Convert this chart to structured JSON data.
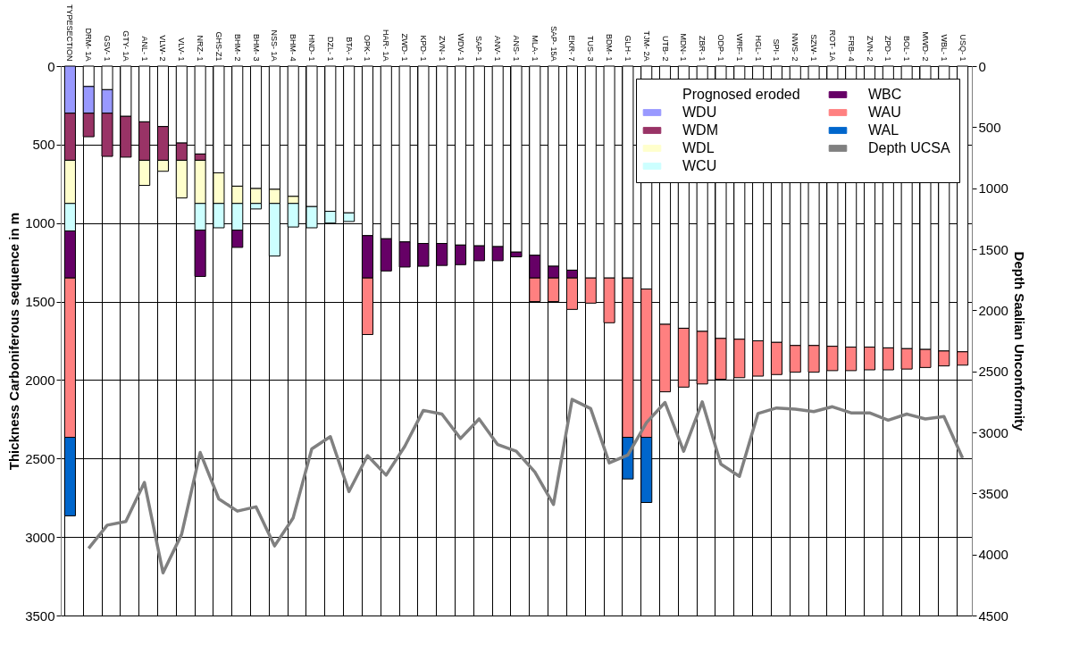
{
  "chart_data": {
    "type": "bar",
    "stacked": true,
    "categories": [
      "TYPESECTION",
      "DRM- 1A",
      "GSV- 1",
      "GTY- 1A",
      "ANL- 1",
      "VLW- 2",
      "VLV- 1",
      "NRZ- 1",
      "GHS-Z1",
      "BHM- 2",
      "BHM- 3",
      "NSS- 1A",
      "BHM- 4",
      "HND- 1",
      "DZL- 1",
      "BTA- 1",
      "OPK- 1",
      "HAR- 1A",
      "ZWD- 1",
      "KPD- 1",
      "ZVN- 1",
      "WDV- 1",
      "SAP- 1",
      "ANV- 1",
      "ANS- 1",
      "MLA- 1",
      "SAP- 15A",
      "EKR- 7",
      "TUS- 3",
      "BDM- 1",
      "GLH- 1",
      "TJM- 2A",
      "UTB- 2",
      "MDN- 1",
      "ZBR- 1",
      "ODP- 1",
      "WRF- 1",
      "HGL- 1",
      "SPI- 1",
      "NWS- 2",
      "SZW- 1",
      "ROT- 1A",
      "FRB- 4",
      "ZVN- 2",
      "ZPD- 1",
      "BOL- 1",
      "MWD- 2",
      "WBL- 1",
      "USQ- 1"
    ],
    "ylabel": "Thickness Carboniferous sequence in m",
    "y2label": "Depth Saalian Unconformity",
    "ylim": [
      3500,
      0
    ],
    "yticks": [
      0,
      500,
      1000,
      1500,
      2000,
      2500,
      3000,
      3500
    ],
    "y2lim": [
      4500,
      0
    ],
    "y2ticks": [
      0,
      500,
      1000,
      1500,
      2000,
      2500,
      3000,
      3500,
      4000,
      4500
    ],
    "grid": true,
    "legend": "top right",
    "series": [
      {
        "name": "Prognosed eroded",
        "color": "#ffffff",
        "values": [
          null,
          130,
          150,
          320,
          355,
          385,
          490,
          560,
          680,
          765,
          780,
          785,
          830,
          895,
          925,
          935,
          1080,
          1100,
          1120,
          1130,
          1130,
          1140,
          1145,
          1150,
          1185,
          1205,
          1275,
          1300,
          1350,
          1350,
          1350,
          1420,
          1645,
          1670,
          1690,
          1735,
          1740,
          1750,
          1760,
          1780,
          1780,
          1785,
          1790,
          1790,
          1795,
          1800,
          1805,
          1815,
          1820
        ]
      },
      {
        "name": "WDU",
        "color": "#9999ff",
        "values": [
          300,
          170,
          150,
          null,
          null,
          null,
          null,
          null,
          null,
          null,
          null,
          null,
          null,
          null,
          null,
          null,
          null,
          null,
          null,
          null,
          null,
          null,
          null,
          null,
          null,
          null,
          null,
          null,
          null,
          null,
          null,
          null,
          null,
          null,
          null,
          null,
          null,
          null,
          null,
          null,
          null,
          null,
          null,
          null,
          null,
          null,
          null,
          null,
          null
        ]
      },
      {
        "name": "WDM",
        "color": "#993366",
        "values": [
          300,
          150,
          275,
          260,
          245,
          215,
          110,
          40,
          null,
          null,
          null,
          null,
          null,
          null,
          null,
          null,
          null,
          null,
          null,
          null,
          null,
          null,
          null,
          null,
          null,
          null,
          null,
          null,
          null,
          null,
          null,
          null,
          null,
          null,
          null,
          null,
          null,
          null,
          null,
          null,
          null,
          null,
          null,
          null,
          null,
          null,
          null,
          null,
          null
        ]
      },
      {
        "name": "WDL",
        "color": "#ffffcc",
        "values": [
          275,
          null,
          null,
          null,
          160,
          70,
          240,
          275,
          195,
          110,
          95,
          90,
          45,
          null,
          null,
          null,
          null,
          null,
          null,
          null,
          null,
          null,
          null,
          null,
          null,
          null,
          null,
          null,
          null,
          null,
          null,
          null,
          null,
          null,
          null,
          null,
          null,
          null,
          null,
          null,
          null,
          null,
          null,
          null,
          null,
          null,
          null,
          null,
          null
        ]
      },
      {
        "name": "WCU",
        "color": "#ccffff",
        "values": [
          175,
          null,
          null,
          null,
          null,
          null,
          null,
          170,
          155,
          170,
          35,
          335,
          150,
          135,
          75,
          55,
          null,
          null,
          null,
          null,
          null,
          null,
          null,
          null,
          null,
          null,
          null,
          null,
          null,
          null,
          null,
          null,
          null,
          null,
          null,
          null,
          null,
          null,
          null,
          null,
          null,
          null,
          null,
          null,
          null,
          null,
          null,
          null,
          null
        ]
      },
      {
        "name": "WBC",
        "color": "#660066",
        "values": [
          300,
          null,
          null,
          null,
          null,
          null,
          null,
          295,
          null,
          110,
          null,
          null,
          null,
          null,
          null,
          null,
          270,
          205,
          160,
          145,
          140,
          125,
          95,
          90,
          30,
          145,
          75,
          50,
          null,
          null,
          null,
          null,
          null,
          null,
          null,
          null,
          null,
          null,
          null,
          null,
          null,
          null,
          null,
          null,
          null,
          null,
          null,
          null,
          null
        ]
      },
      {
        "name": "WAU",
        "color": "#ff8080",
        "values": [
          1015,
          null,
          null,
          null,
          null,
          null,
          null,
          null,
          null,
          null,
          null,
          null,
          null,
          null,
          null,
          null,
          360,
          null,
          null,
          null,
          null,
          null,
          null,
          null,
          null,
          150,
          150,
          200,
          160,
          285,
          1015,
          945,
          430,
          375,
          335,
          260,
          245,
          225,
          205,
          170,
          170,
          155,
          150,
          145,
          140,
          130,
          115,
          95,
          85
        ]
      },
      {
        "name": "WAL",
        "color": "#0066cc",
        "values": [
          500,
          null,
          null,
          null,
          null,
          null,
          null,
          null,
          null,
          null,
          null,
          null,
          null,
          null,
          null,
          null,
          null,
          null,
          null,
          null,
          null,
          null,
          null,
          null,
          null,
          null,
          null,
          null,
          null,
          null,
          265,
          415,
          null,
          null,
          null,
          null,
          null,
          null,
          null,
          null,
          null,
          null,
          null,
          null,
          null,
          null,
          null,
          null,
          null
        ]
      },
      {
        "name": "Depth UCSA",
        "type": "line",
        "axis": "y2",
        "color": "#808080",
        "values": [
          null,
          3950,
          3760,
          3730,
          3410,
          4150,
          3835,
          3165,
          3545,
          3645,
          3610,
          3930,
          3700,
          3135,
          3035,
          3485,
          3190,
          3350,
          3115,
          2820,
          2850,
          3050,
          2890,
          3100,
          3155,
          3325,
          3590,
          2730,
          2805,
          3250,
          3185,
          2920,
          2755,
          3155,
          2750,
          3260,
          3360,
          2845,
          2800,
          2810,
          2830,
          2790,
          2840,
          2840,
          2900,
          2850,
          2890,
          2870,
          3210
        ]
      }
    ]
  }
}
